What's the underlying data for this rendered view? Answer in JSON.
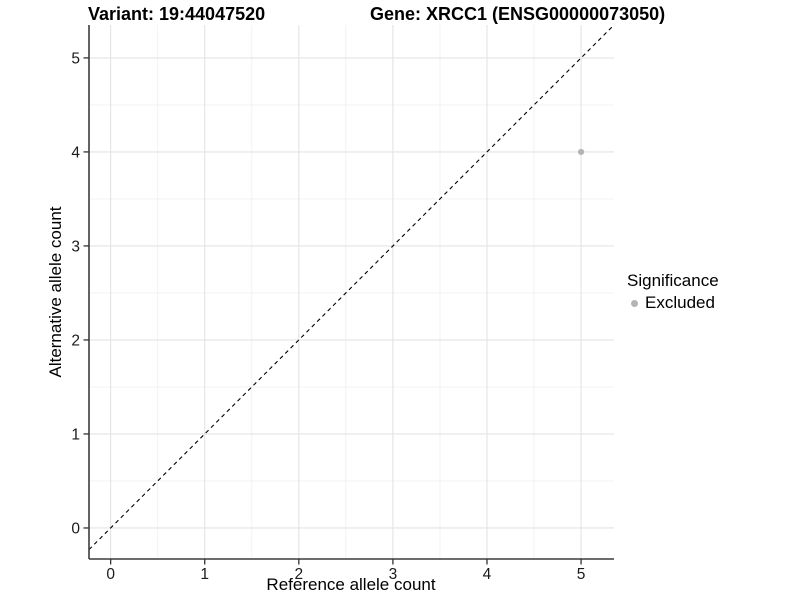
{
  "header": {
    "variant_title": "Variant: 19:44047520",
    "gene_title": "Gene: XRCC1 (ENSG00000073050)"
  },
  "chart_data": {
    "type": "scatter",
    "title_left": "Variant: 19:44047520",
    "title_right": "Gene: XRCC1 (ENSG00000073050)",
    "xlabel": "Reference allele count",
    "ylabel": "Alternative allele count",
    "xlim": [
      -0.23,
      5.35
    ],
    "ylim": [
      -0.33,
      5.35
    ],
    "x_ticks": [
      0,
      1,
      2,
      3,
      4,
      5
    ],
    "y_ticks": [
      0,
      1,
      2,
      3,
      4,
      5
    ],
    "x_minor_ticks": [
      0.5,
      1.5,
      2.5,
      3.5,
      4.5
    ],
    "y_minor_ticks": [
      0.5,
      1.5,
      2.5,
      3.5,
      4.5
    ],
    "grid": true,
    "series": [
      {
        "name": "Excluded",
        "color": "#b4b4b4",
        "points": [
          {
            "x": 5,
            "y": 4
          }
        ]
      }
    ],
    "reference_line": {
      "type": "identity",
      "equation": "y = x",
      "style": "dashed",
      "color": "#000000"
    },
    "legend": {
      "title": "Significance",
      "position": "right",
      "entries": [
        {
          "label": "Excluded",
          "color": "#b4b4b4"
        }
      ]
    },
    "style_colors": {
      "background": "#ffffff",
      "major_grid": "#e3e3e3",
      "minor_grid": "#f0f0f0",
      "axis_line": "#3c3c3c",
      "tick_mark": "#333333",
      "tick_label": "#1a1a1a"
    }
  }
}
